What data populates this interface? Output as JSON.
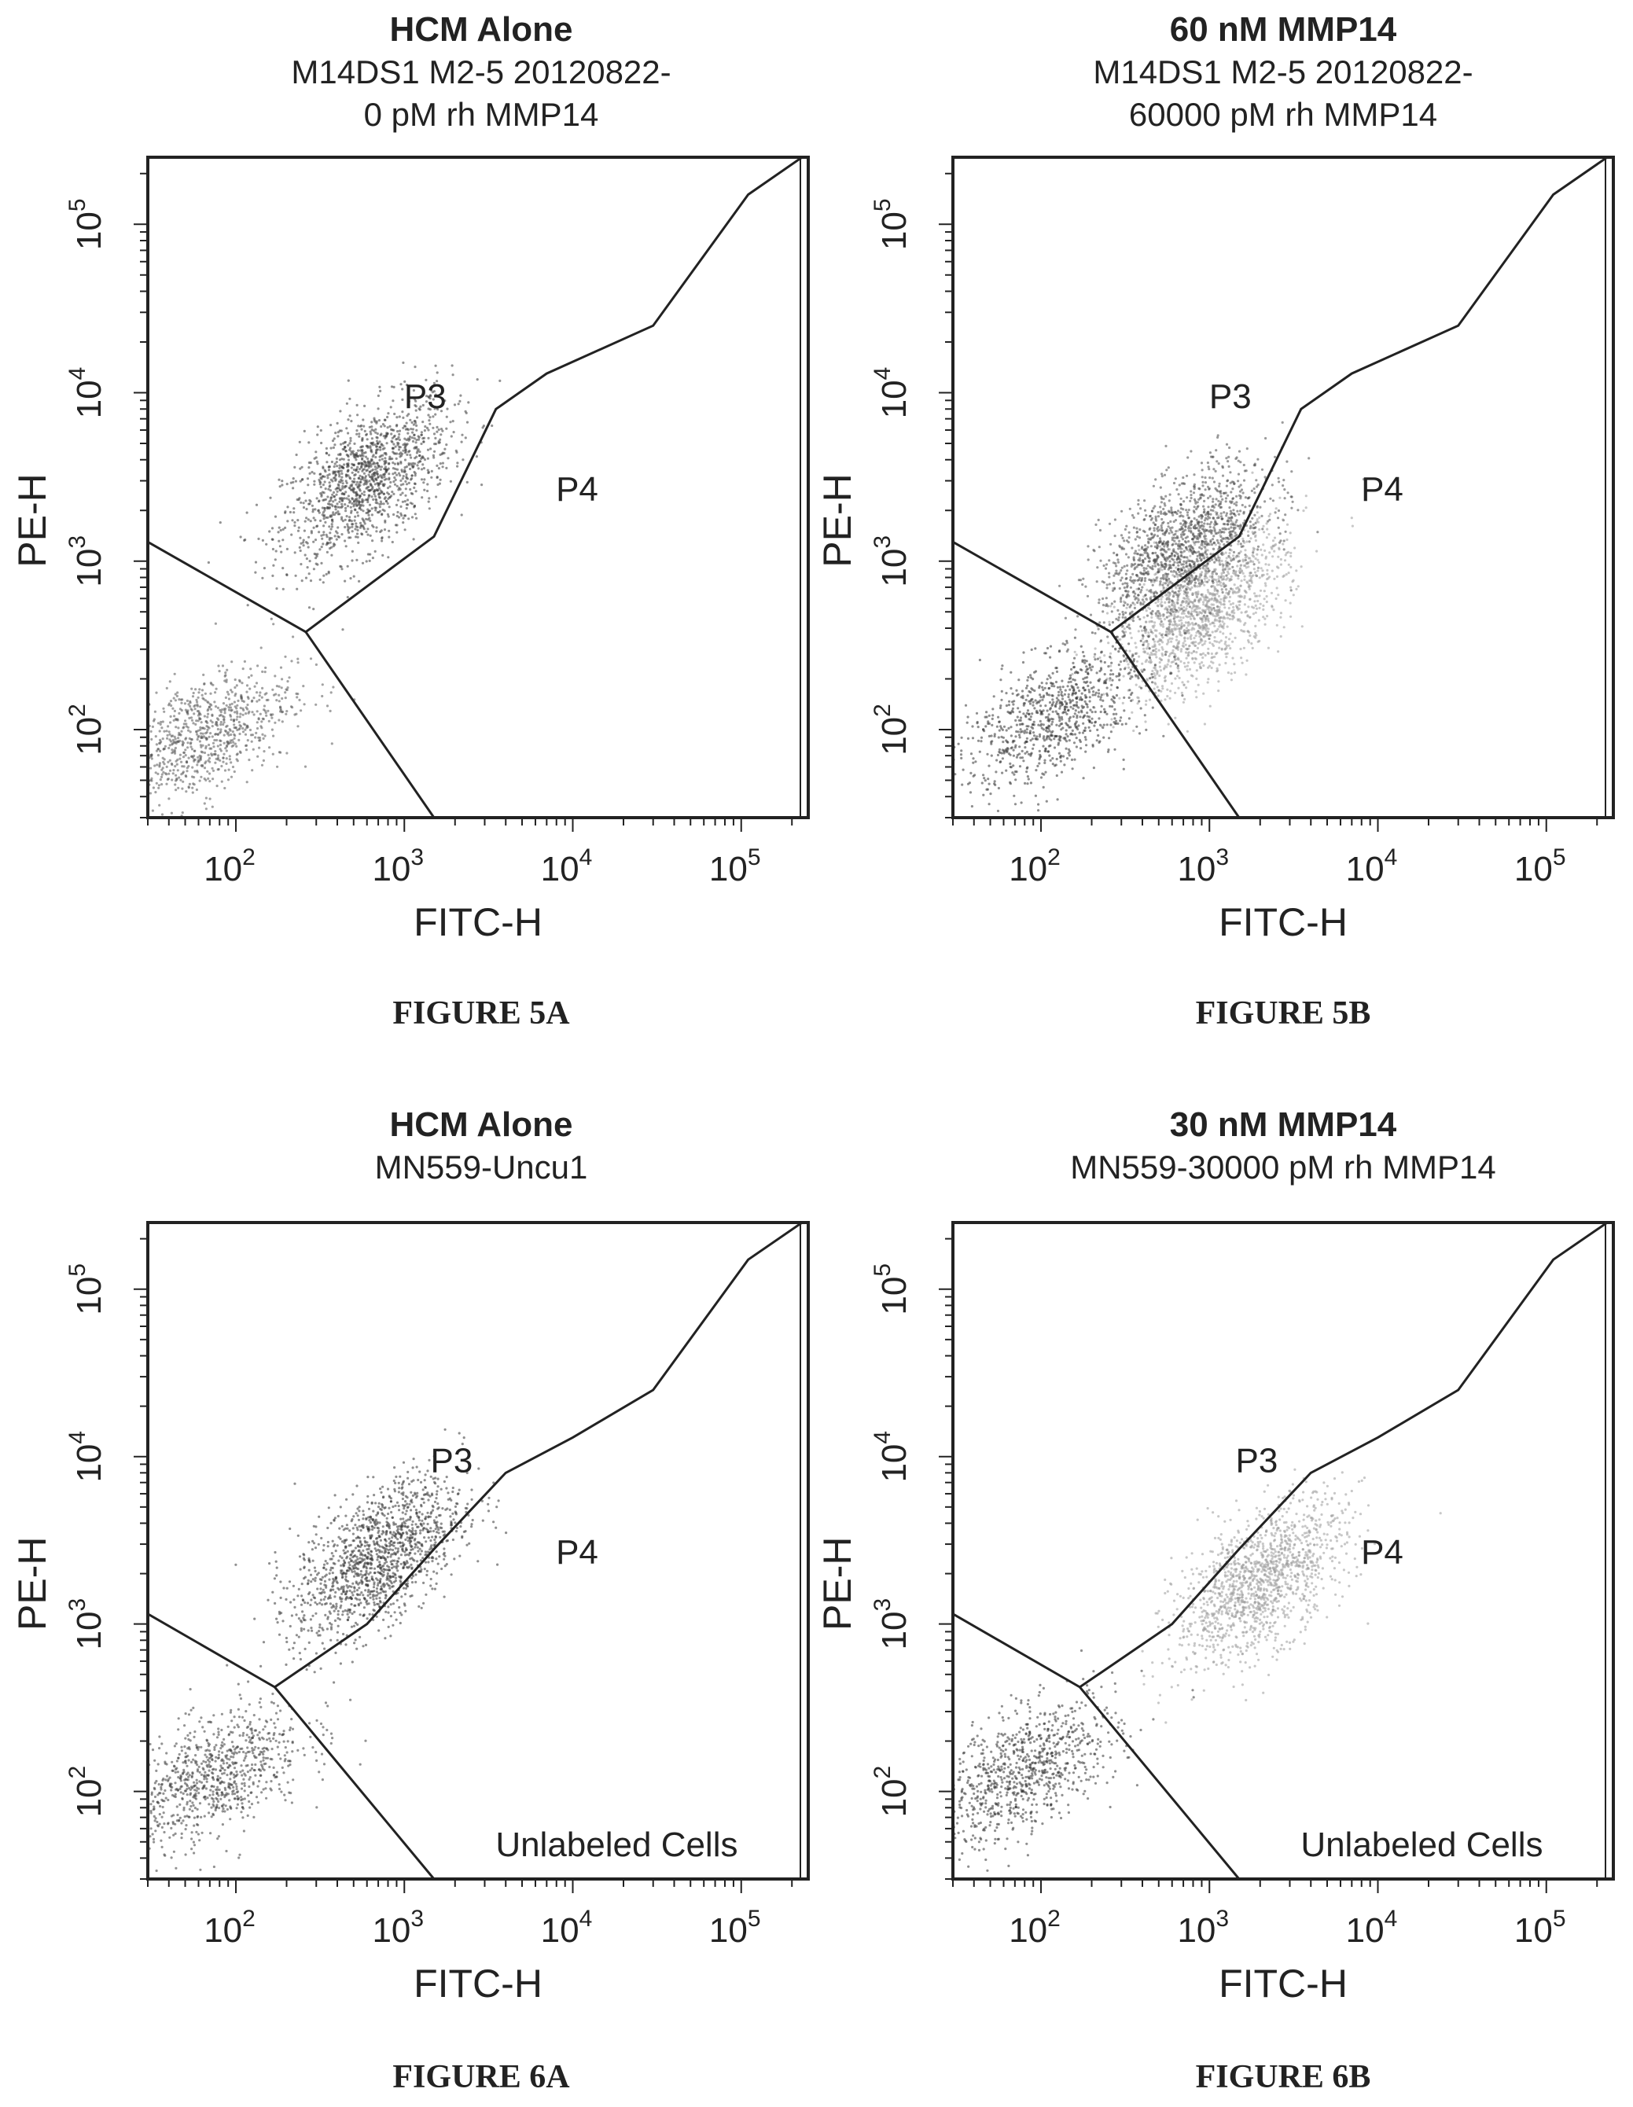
{
  "panels": [
    {
      "caption": "FIGURE 5A",
      "title": "HCM Alone",
      "subtitle": [
        "M14DS1 M2-5 20120822-",
        "0 pM rh MMP14"
      ],
      "gate_labels": [
        "P3",
        "P4"
      ]
    },
    {
      "caption": "FIGURE 5B",
      "title": "60 nM MMP14",
      "subtitle": [
        "M14DS1 M2-5 20120822-",
        "60000 pM rh MMP14"
      ],
      "gate_labels": [
        "P3",
        "P4"
      ]
    },
    {
      "caption": "FIGURE 6A",
      "title": "HCM Alone",
      "subtitle": [
        "MN559-Uncu1"
      ],
      "gate_labels": [
        "P3",
        "P4",
        "Unlabeled Cells"
      ]
    },
    {
      "caption": "FIGURE 6B",
      "title": "30 nM MMP14",
      "subtitle": [
        "MN559-30000 pM rh MMP14"
      ],
      "gate_labels": [
        "P3",
        "P4",
        "Unlabeled Cells"
      ]
    }
  ],
  "chart_data": [
    {
      "type": "scatter",
      "title": "HCM Alone",
      "xlabel": "FITC-H",
      "ylabel": "PE-H",
      "x_scale": "log",
      "y_scale": "log",
      "xlim": [
        30,
        250000
      ],
      "ylim": [
        30,
        250000
      ],
      "x_ticks": [
        100,
        1000,
        10000,
        100000
      ],
      "y_ticks": [
        100,
        1000,
        10000,
        100000
      ],
      "tick_labels": [
        "10",
        "10",
        "10",
        "10"
      ],
      "tick_exponents": [
        "2",
        "3",
        "4",
        "5"
      ],
      "gates": [
        {
          "name": "P3",
          "vertices": [
            [
              30,
              1300
            ],
            [
              260,
              380
            ],
            [
              1500,
              1400
            ],
            [
              3500,
              8000
            ],
            [
              7000,
              13000
            ],
            [
              30000,
              25000
            ],
            [
              110000,
              150000
            ],
            [
              230000,
              250000
            ]
          ]
        },
        {
          "name": "P4",
          "vertices": [
            [
              260,
              380
            ],
            [
              1500,
              30
            ],
            [
              250000,
              30
            ],
            [
              250000,
              250000
            ]
          ]
        }
      ],
      "populations": [
        {
          "label": "P3",
          "center": [
            600,
            3000
          ],
          "shade": "#3a3a3a"
        },
        {
          "label": "unlabeled",
          "center": [
            60,
            90
          ],
          "shade": "#555555"
        }
      ]
    },
    {
      "type": "scatter",
      "title": "60 nM MMP14",
      "xlabel": "FITC-H",
      "ylabel": "PE-H",
      "x_scale": "log",
      "y_scale": "log",
      "xlim": [
        30,
        250000
      ],
      "ylim": [
        30,
        250000
      ],
      "x_ticks": [
        100,
        1000,
        10000,
        100000
      ],
      "y_ticks": [
        100,
        1000,
        10000,
        100000
      ],
      "tick_labels": [
        "10",
        "10",
        "10",
        "10"
      ],
      "tick_exponents": [
        "2",
        "3",
        "4",
        "5"
      ],
      "gates": [
        {
          "name": "P3",
          "vertices": [
            [
              30,
              1300
            ],
            [
              260,
              380
            ],
            [
              1500,
              1400
            ],
            [
              3500,
              8000
            ],
            [
              7000,
              13000
            ],
            [
              30000,
              25000
            ],
            [
              110000,
              150000
            ],
            [
              230000,
              250000
            ]
          ]
        },
        {
          "name": "P4",
          "vertices": [
            [
              260,
              380
            ],
            [
              1500,
              30
            ],
            [
              250000,
              30
            ],
            [
              250000,
              250000
            ]
          ]
        }
      ],
      "populations": [
        {
          "label": "P3",
          "center": [
            700,
            1200
          ],
          "shade": "#4a4a4a"
        },
        {
          "label": "P4",
          "center": [
            900,
            500
          ],
          "shade": "#9a9a9a"
        },
        {
          "label": "unlabeled",
          "center": [
            120,
            120
          ],
          "shade": "#333333"
        }
      ]
    },
    {
      "type": "scatter",
      "title": "HCM Alone",
      "xlabel": "FITC-H",
      "ylabel": "PE-H",
      "x_scale": "log",
      "y_scale": "log",
      "xlim": [
        30,
        250000
      ],
      "ylim": [
        30,
        250000
      ],
      "x_ticks": [
        100,
        1000,
        10000,
        100000
      ],
      "y_ticks": [
        100,
        1000,
        10000,
        100000
      ],
      "tick_labels": [
        "10",
        "10",
        "10",
        "10"
      ],
      "tick_exponents": [
        "2",
        "3",
        "4",
        "5"
      ],
      "gates": [
        {
          "name": "P3",
          "vertices": [
            [
              30,
              1150
            ],
            [
              170,
              420
            ],
            [
              600,
              1000
            ],
            [
              1500,
              2800
            ],
            [
              4000,
              8000
            ],
            [
              10000,
              13000
            ],
            [
              30000,
              25000
            ],
            [
              110000,
              150000
            ],
            [
              230000,
              250000
            ]
          ]
        },
        {
          "name": "P4",
          "vertices": [
            [
              170,
              420
            ],
            [
              1500,
              30
            ],
            [
              250000,
              30
            ],
            [
              250000,
              250000
            ]
          ]
        }
      ],
      "populations": [
        {
          "label": "P3",
          "center": [
            700,
            2500
          ],
          "shade": "#333333"
        },
        {
          "label": "unlabeled",
          "center": [
            70,
            120
          ],
          "shade": "#3a3a3a"
        }
      ]
    },
    {
      "type": "scatter",
      "title": "30 nM MMP14",
      "xlabel": "FITC-H",
      "ylabel": "PE-H",
      "x_scale": "log",
      "y_scale": "log",
      "xlim": [
        30,
        250000
      ],
      "ylim": [
        30,
        250000
      ],
      "x_ticks": [
        100,
        1000,
        10000,
        100000
      ],
      "y_ticks": [
        100,
        1000,
        10000,
        100000
      ],
      "tick_labels": [
        "10",
        "10",
        "10",
        "10"
      ],
      "tick_exponents": [
        "2",
        "3",
        "4",
        "5"
      ],
      "gates": [
        {
          "name": "P3",
          "vertices": [
            [
              30,
              1150
            ],
            [
              170,
              420
            ],
            [
              600,
              1000
            ],
            [
              1500,
              2800
            ],
            [
              4000,
              8000
            ],
            [
              10000,
              13000
            ],
            [
              30000,
              25000
            ],
            [
              110000,
              150000
            ],
            [
              230000,
              250000
            ]
          ]
        },
        {
          "name": "P4",
          "vertices": [
            [
              170,
              420
            ],
            [
              1500,
              30
            ],
            [
              250000,
              30
            ],
            [
              250000,
              250000
            ]
          ]
        }
      ],
      "populations": [
        {
          "label": "P4",
          "center": [
            2000,
            1800
          ],
          "shade": "#9a9a9a"
        },
        {
          "label": "unlabeled",
          "center": [
            80,
            130
          ],
          "shade": "#333333"
        }
      ]
    }
  ]
}
